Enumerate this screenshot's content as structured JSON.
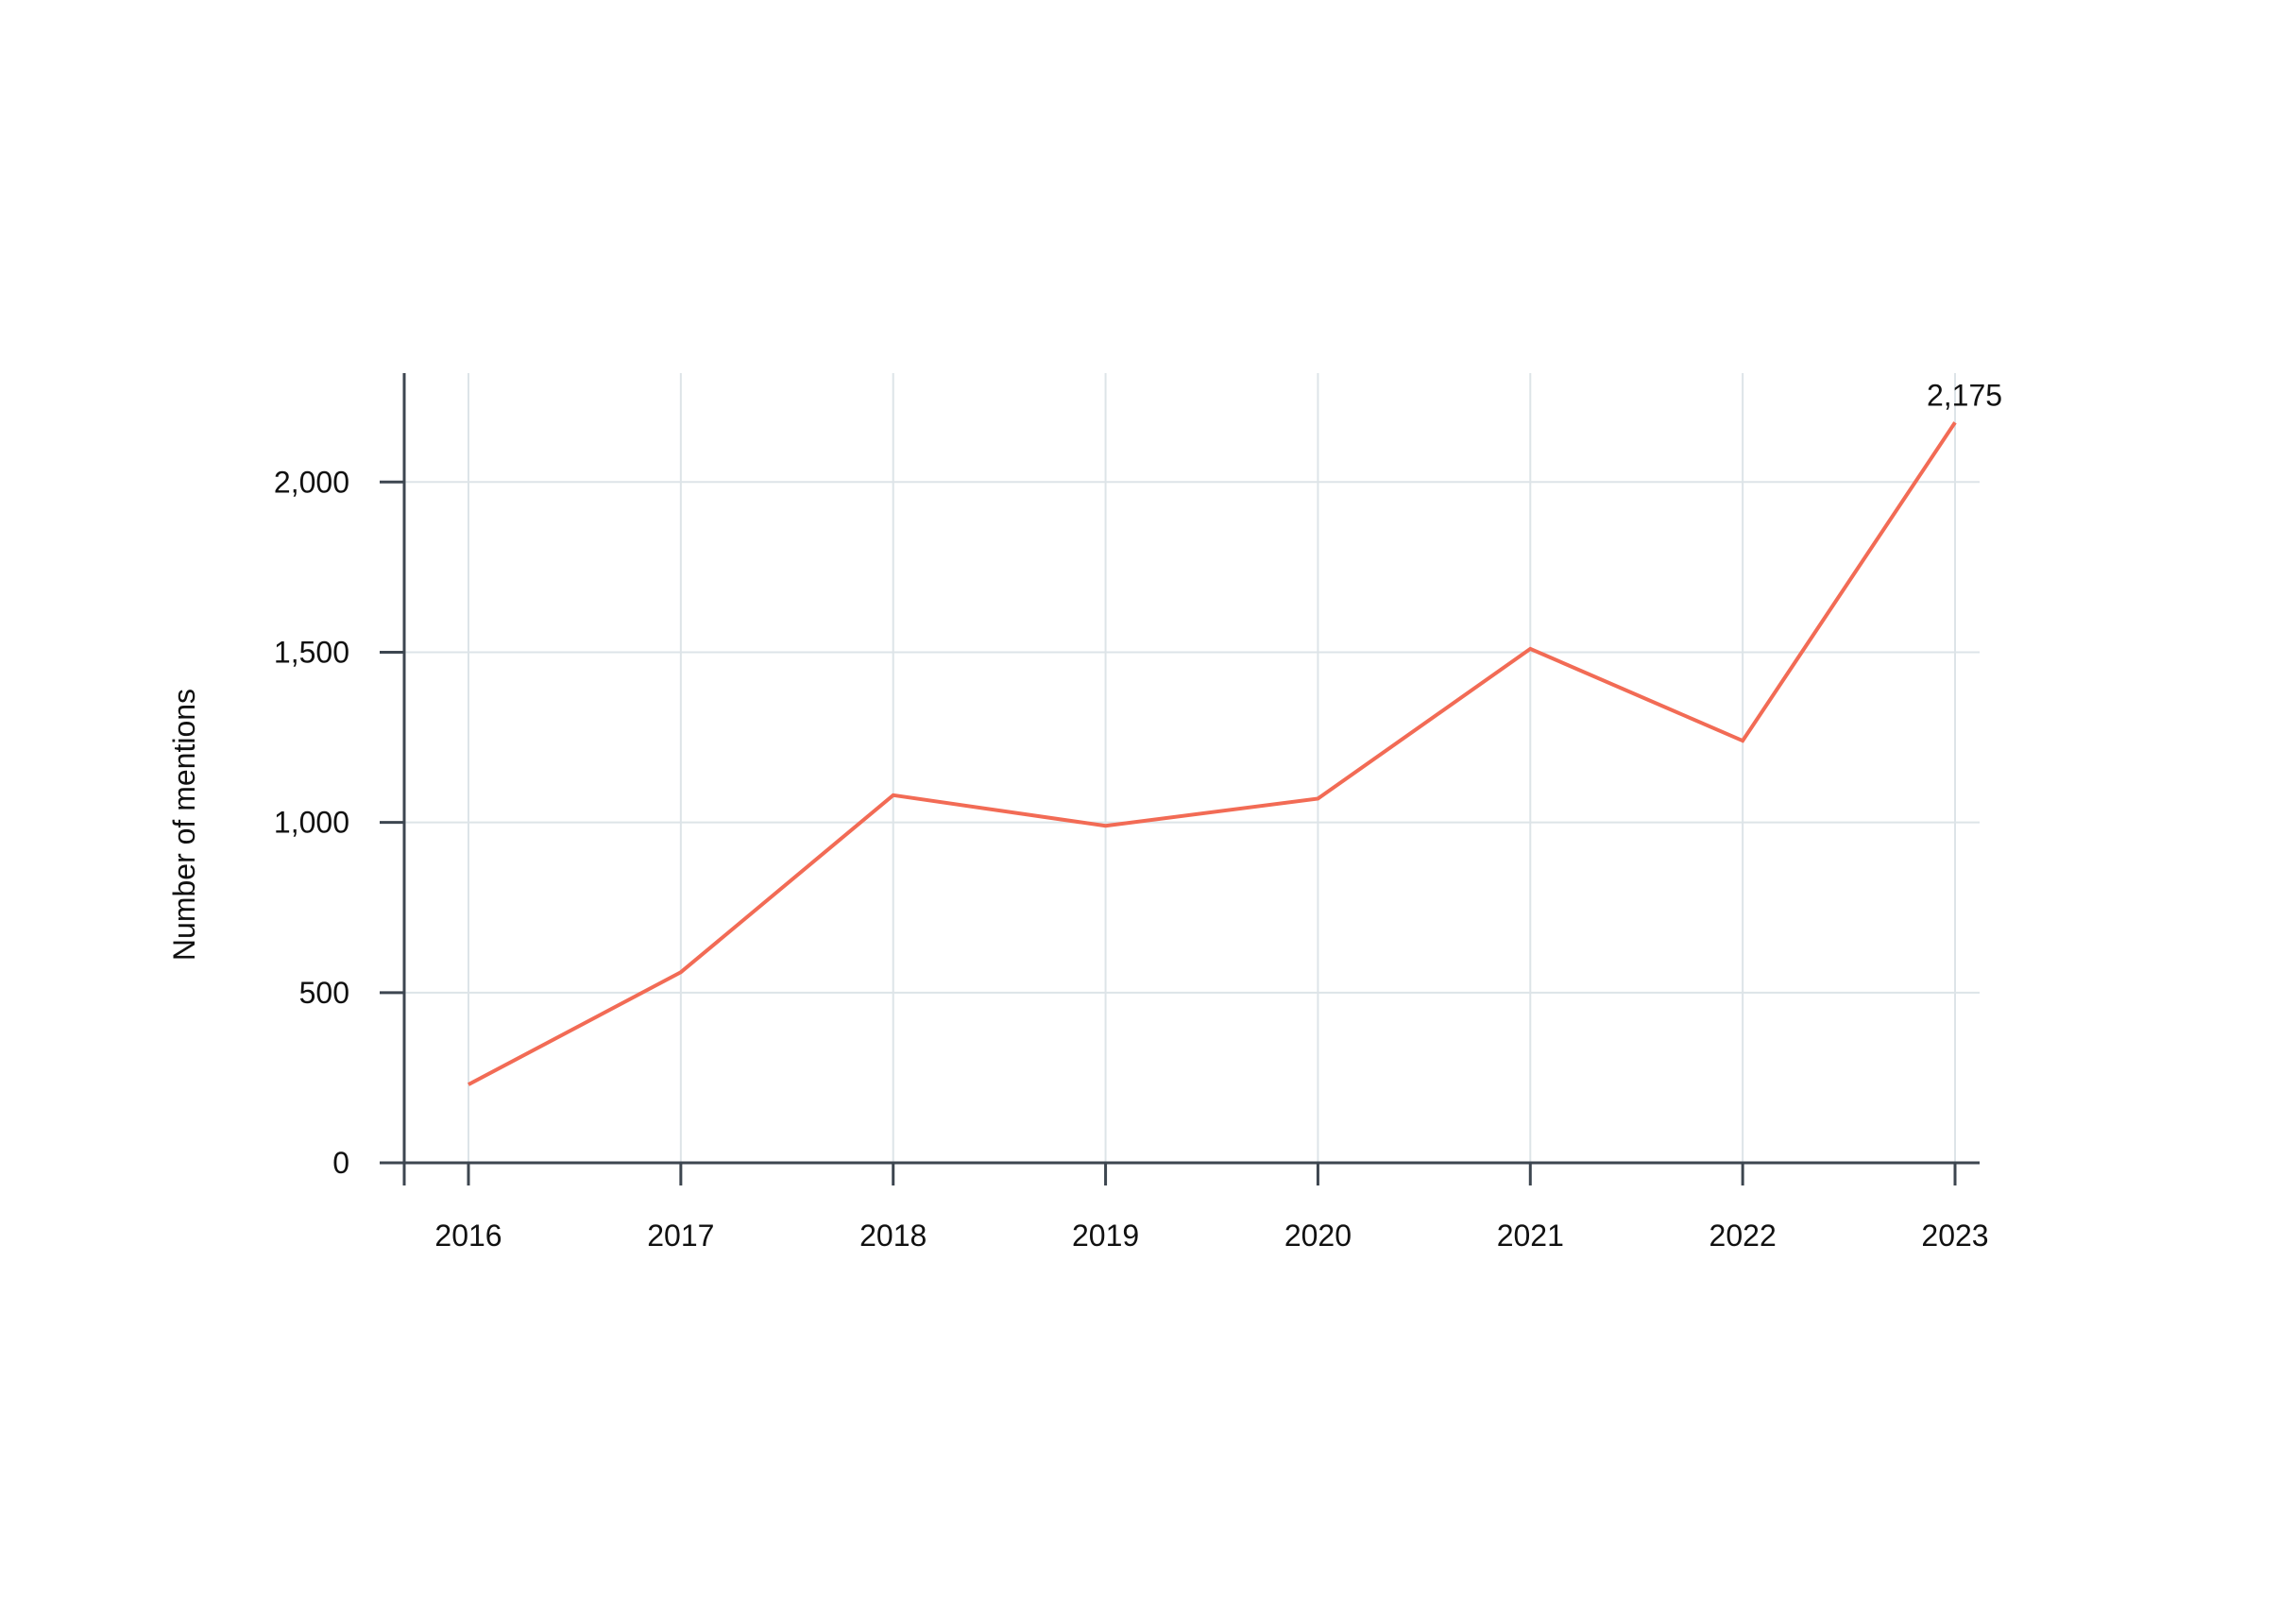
{
  "chart_data": {
    "type": "line",
    "title": "",
    "xlabel": "",
    "ylabel": "Number of mentions",
    "categories": [
      "2016",
      "2017",
      "2018",
      "2019",
      "2020",
      "2021",
      "2022",
      "2023"
    ],
    "series": [
      {
        "values": [
          230,
          560,
          1080,
          990,
          1070,
          1510,
          1240,
          2175
        ],
        "color": "#f26b55"
      }
    ],
    "ylim": [
      0,
      2320
    ],
    "yticks": [
      0,
      500,
      1000,
      1500,
      2000
    ],
    "ytick_labels": [
      "0",
      "500",
      "1,000",
      "1,500",
      "2,000"
    ],
    "grid": true,
    "annotations": [
      {
        "category": "2023",
        "value": 2175,
        "text": "2,175"
      }
    ],
    "colors": {
      "line": "#f26b55",
      "axis": "#3d4650",
      "grid": "#dde4e8"
    }
  }
}
